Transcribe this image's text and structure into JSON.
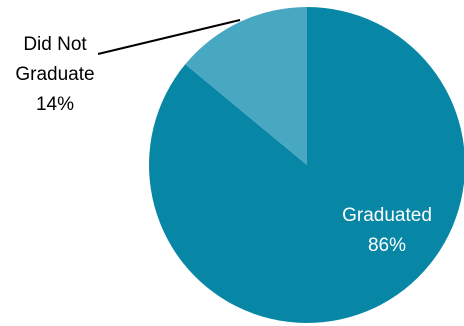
{
  "chart_data": {
    "type": "pie",
    "title": "",
    "slices": [
      {
        "label": "Graduated",
        "value": 86,
        "value_label": "86%",
        "color": "#0787a5"
      },
      {
        "label": "Did Not Graduate",
        "value": 14,
        "value_label": "14%",
        "color": "#49a8c1"
      }
    ],
    "labels": {
      "graduated": {
        "line1": "Graduated",
        "line2": "86%"
      },
      "did_not_graduate": {
        "line1": "Did Not",
        "line2": "Graduate",
        "line3": "14%"
      }
    },
    "legend": "none"
  }
}
